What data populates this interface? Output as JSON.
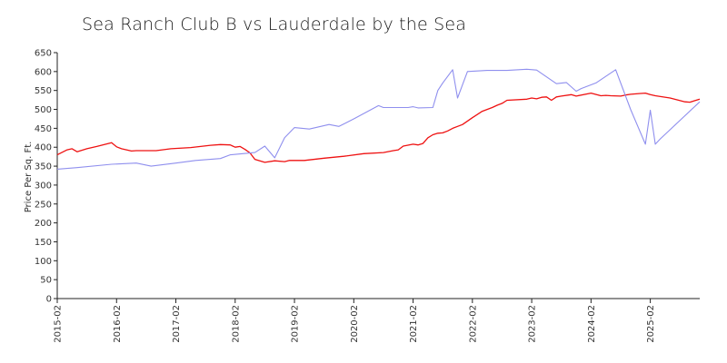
{
  "chart_data": {
    "type": "line",
    "title": "Sea Ranch Club B vs Lauderdale by  the Sea",
    "xlabel": "",
    "ylabel": "Price Per Sq. Ft.",
    "ylim": [
      0,
      650
    ],
    "yticks": [
      0,
      50,
      100,
      150,
      200,
      250,
      300,
      350,
      400,
      450,
      500,
      550,
      600,
      650
    ],
    "xlim": [
      "2015-02",
      "2025-12"
    ],
    "xticks": [
      "2015-02",
      "2016-02",
      "2017-02",
      "2018-02",
      "2019-02",
      "2020-02",
      "2021-02",
      "2022-02",
      "2023-02",
      "2024-02",
      "2025-02"
    ],
    "grid": false,
    "legend": "none",
    "series": [
      {
        "color": "#ee1111",
        "x": [
          "2015-02",
          "2015-04",
          "2015-05",
          "2015-06",
          "2015-08",
          "2015-10",
          "2016-01",
          "2016-02",
          "2016-03",
          "2016-05",
          "2016-06",
          "2016-08",
          "2016-10",
          "2017-01",
          "2017-05",
          "2017-09",
          "2017-11",
          "2018-01",
          "2018-02",
          "2018-03",
          "2018-04",
          "2018-05",
          "2018-06",
          "2018-08",
          "2018-10",
          "2018-12",
          "2019-01",
          "2019-04",
          "2019-08",
          "2019-12",
          "2020-04",
          "2020-08",
          "2020-10",
          "2020-11",
          "2020-12",
          "2021-02",
          "2021-03",
          "2021-04",
          "2021-05",
          "2021-06",
          "2021-07",
          "2021-08",
          "2021-09",
          "2021-10",
          "2021-11",
          "2021-12",
          "2022-02",
          "2022-04",
          "2022-06",
          "2022-07",
          "2022-08",
          "2022-09",
          "2023-01",
          "2023-02",
          "2023-03",
          "2023-04",
          "2023-05",
          "2023-06",
          "2023-07",
          "2023-08",
          "2023-10",
          "2023-11",
          "2024-02",
          "2024-04",
          "2024-05",
          "2024-06",
          "2024-08",
          "2024-09",
          "2024-10",
          "2024-12",
          "2025-01",
          "2025-02",
          "2025-03",
          "2025-06",
          "2025-09",
          "2025-10",
          "2025-12"
        ],
        "y": [
          380,
          393,
          396,
          388,
          396,
          402,
          412,
          401,
          396,
          390,
          391,
          391,
          391,
          396,
          399,
          405,
          407,
          406,
          400,
          402,
          394,
          385,
          368,
          360,
          364,
          362,
          365,
          365,
          371,
          376,
          383,
          386,
          391,
          393,
          403,
          408,
          406,
          410,
          425,
          433,
          437,
          438,
          443,
          450,
          455,
          460,
          478,
          495,
          505,
          511,
          516,
          524,
          527,
          530,
          528,
          532,
          533,
          524,
          533,
          535,
          539,
          535,
          543,
          536,
          537,
          536,
          535,
          538,
          540,
          542,
          543,
          539,
          536,
          530,
          520,
          519,
          527
        ]
      },
      {
        "color": "#8f8fee",
        "x": [
          "2015-02",
          "2015-06",
          "2016-01",
          "2016-06",
          "2016-09",
          "2017-02",
          "2017-06",
          "2017-11",
          "2018-01",
          "2018-06",
          "2018-08",
          "2018-10",
          "2018-12",
          "2019-02",
          "2019-05",
          "2019-09",
          "2019-11",
          "2020-02",
          "2020-07",
          "2020-08",
          "2020-10",
          "2021-01",
          "2021-02",
          "2021-03",
          "2021-06",
          "2021-07",
          "2021-08",
          "2021-10",
          "2021-11",
          "2022-01",
          "2022-05",
          "2022-07",
          "2022-09",
          "2023-01",
          "2023-03",
          "2023-07",
          "2023-09",
          "2023-11",
          "2023-12",
          "2024-03",
          "2024-07",
          "2024-10",
          "2025-01",
          "2025-02",
          "2025-03",
          "2025-04",
          "2025-12"
        ],
        "y": [
          342,
          346,
          355,
          358,
          350,
          358,
          365,
          370,
          380,
          386,
          403,
          372,
          425,
          452,
          448,
          460,
          455,
          475,
          510,
          505,
          505,
          505,
          507,
          504,
          505,
          550,
          570,
          605,
          530,
          600,
          603,
          603,
          603,
          606,
          604,
          568,
          571,
          548,
          555,
          570,
          605,
          500,
          408,
          498,
          408,
          422,
          520
        ]
      }
    ]
  }
}
